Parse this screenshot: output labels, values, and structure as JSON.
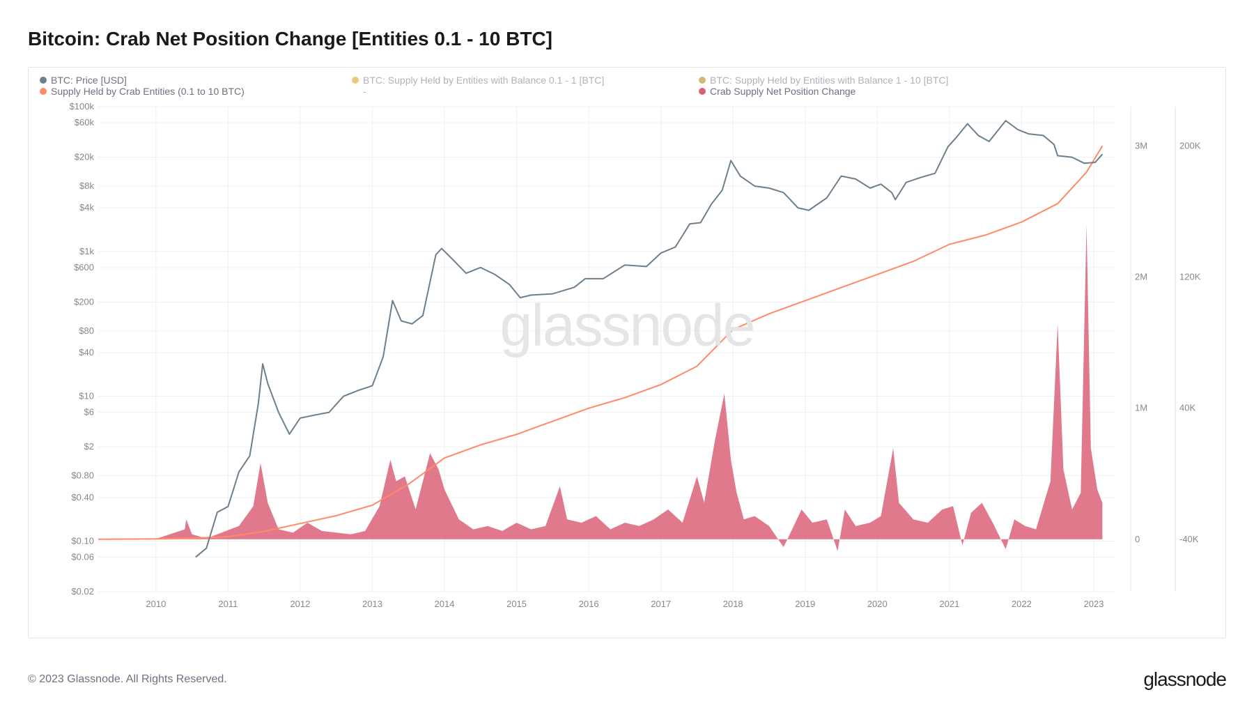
{
  "title": "Bitcoin: Crab Net Position Change [Entities 0.1 - 10 BTC]",
  "watermark": "glassnode",
  "footer_copyright": "© 2023 Glassnode. All Rights Reserved.",
  "footer_brand": "glassnode",
  "legend": [
    {
      "label": "BTC: Price [USD]",
      "color": "#6b7f8c",
      "muted": false
    },
    {
      "label": "BTC: Supply Held by Entities with Balance 0.1 - 1 [BTC]",
      "color": "#d4a017",
      "muted": true
    },
    {
      "label": "BTC: Supply Held by Entities with Balance 1 - 10 [BTC]",
      "color": "#b07d00",
      "muted": true
    },
    {
      "label": "Supply Held by Crab Entities (0.1 to 10 BTC)",
      "color": "#ff8a65",
      "muted": false
    },
    {
      "label": "-",
      "color": "transparent",
      "muted": true
    },
    {
      "label": "Crab Supply Net Position Change",
      "color": "#d96277",
      "muted": false
    }
  ],
  "chart": {
    "type": "combo-line-area",
    "x_years": [
      2010,
      2011,
      2012,
      2013,
      2014,
      2015,
      2016,
      2017,
      2018,
      2019,
      2020,
      2021,
      2022,
      2023
    ],
    "x_range": [
      2009.2,
      2023.3
    ],
    "left_axis": {
      "scale": "log",
      "label_ticks": [
        "$100k",
        "$60k",
        "$20k",
        "$8k",
        "$4k",
        "$1k",
        "$600",
        "$200",
        "$80",
        "$40",
        "$10",
        "$6",
        "$2",
        "$0.80",
        "$0.40",
        "$0.10",
        "$0.06",
        "$0.02"
      ],
      "tick_values": [
        100000,
        60000,
        20000,
        8000,
        4000,
        1000,
        600,
        200,
        80,
        40,
        10,
        6,
        2,
        0.8,
        0.4,
        0.1,
        0.06,
        0.02
      ],
      "min": 0.02,
      "max": 100000,
      "color": "#888888"
    },
    "right_axis_supply": {
      "scale": "linear",
      "ticks": [
        "3M",
        "2M",
        "1M",
        "0"
      ],
      "tick_values": [
        3000000,
        2000000,
        1000000,
        0
      ],
      "min": -400000,
      "max": 3300000,
      "color": "#ff8a65"
    },
    "right_axis_netpos": {
      "scale": "linear",
      "ticks": [
        "200K",
        "120K",
        "40K",
        "-40K"
      ],
      "tick_values": [
        200000,
        120000,
        40000,
        -40000
      ],
      "min": -48000,
      "max": 230000,
      "color": "#d96277"
    },
    "colors": {
      "price_line": "#6b7f8c",
      "supply_line": "#ff8a65",
      "netpos_fill": "#d96277",
      "background": "#ffffff",
      "grid": "#f0f0f0",
      "axis_text": "#888888"
    },
    "line_width_price": 2,
    "line_width_supply": 2,
    "fill_opacity_netpos": 0.85,
    "price_series": [
      [
        2010.55,
        0.06
      ],
      [
        2010.7,
        0.08
      ],
      [
        2010.85,
        0.25
      ],
      [
        2011.0,
        0.3
      ],
      [
        2011.15,
        0.9
      ],
      [
        2011.3,
        1.5
      ],
      [
        2011.42,
        8
      ],
      [
        2011.48,
        28
      ],
      [
        2011.55,
        15
      ],
      [
        2011.7,
        6
      ],
      [
        2011.85,
        3
      ],
      [
        2012.0,
        5
      ],
      [
        2012.2,
        5.5
      ],
      [
        2012.4,
        6
      ],
      [
        2012.6,
        10
      ],
      [
        2012.8,
        12
      ],
      [
        2013.0,
        14
      ],
      [
        2013.15,
        35
      ],
      [
        2013.28,
        210
      ],
      [
        2013.4,
        110
      ],
      [
        2013.55,
        100
      ],
      [
        2013.7,
        130
      ],
      [
        2013.88,
        900
      ],
      [
        2013.96,
        1100
      ],
      [
        2014.1,
        800
      ],
      [
        2014.3,
        500
      ],
      [
        2014.5,
        600
      ],
      [
        2014.7,
        480
      ],
      [
        2014.9,
        350
      ],
      [
        2015.05,
        230
      ],
      [
        2015.2,
        250
      ],
      [
        2015.5,
        260
      ],
      [
        2015.8,
        320
      ],
      [
        2015.95,
        420
      ],
      [
        2016.2,
        420
      ],
      [
        2016.5,
        650
      ],
      [
        2016.8,
        620
      ],
      [
        2017.0,
        950
      ],
      [
        2017.2,
        1150
      ],
      [
        2017.4,
        2400
      ],
      [
        2017.55,
        2500
      ],
      [
        2017.7,
        4500
      ],
      [
        2017.85,
        7000
      ],
      [
        2017.97,
        18000
      ],
      [
        2018.1,
        11000
      ],
      [
        2018.3,
        8000
      ],
      [
        2018.5,
        7500
      ],
      [
        2018.7,
        6500
      ],
      [
        2018.9,
        4000
      ],
      [
        2019.05,
        3700
      ],
      [
        2019.3,
        5500
      ],
      [
        2019.5,
        11000
      ],
      [
        2019.7,
        10000
      ],
      [
        2019.9,
        7500
      ],
      [
        2020.05,
        8500
      ],
      [
        2020.2,
        6500
      ],
      [
        2020.25,
        5200
      ],
      [
        2020.4,
        9000
      ],
      [
        2020.6,
        10500
      ],
      [
        2020.8,
        12000
      ],
      [
        2020.98,
        28000
      ],
      [
        2021.1,
        38000
      ],
      [
        2021.25,
        58000
      ],
      [
        2021.4,
        40000
      ],
      [
        2021.55,
        33000
      ],
      [
        2021.78,
        64000
      ],
      [
        2021.95,
        48000
      ],
      [
        2022.1,
        42000
      ],
      [
        2022.3,
        40000
      ],
      [
        2022.45,
        30000
      ],
      [
        2022.5,
        21000
      ],
      [
        2022.7,
        20000
      ],
      [
        2022.87,
        16500
      ],
      [
        2023.02,
        17000
      ],
      [
        2023.12,
        22000
      ]
    ],
    "supply_series": [
      [
        2009.2,
        0
      ],
      [
        2010.0,
        3000
      ],
      [
        2010.5,
        8000
      ],
      [
        2011.0,
        20000
      ],
      [
        2011.5,
        60000
      ],
      [
        2012.0,
        120000
      ],
      [
        2012.5,
        180000
      ],
      [
        2013.0,
        260000
      ],
      [
        2013.5,
        420000
      ],
      [
        2014.0,
        620000
      ],
      [
        2014.5,
        720000
      ],
      [
        2015.0,
        800000
      ],
      [
        2015.5,
        900000
      ],
      [
        2016.0,
        1000000
      ],
      [
        2016.5,
        1080000
      ],
      [
        2017.0,
        1180000
      ],
      [
        2017.5,
        1320000
      ],
      [
        2018.0,
        1600000
      ],
      [
        2018.5,
        1720000
      ],
      [
        2019.0,
        1820000
      ],
      [
        2019.5,
        1920000
      ],
      [
        2020.0,
        2020000
      ],
      [
        2020.5,
        2120000
      ],
      [
        2021.0,
        2250000
      ],
      [
        2021.5,
        2320000
      ],
      [
        2022.0,
        2420000
      ],
      [
        2022.5,
        2560000
      ],
      [
        2022.9,
        2800000
      ],
      [
        2023.12,
        3000000
      ]
    ],
    "netpos_series": [
      [
        2009.2,
        0
      ],
      [
        2010.0,
        200
      ],
      [
        2010.4,
        6000
      ],
      [
        2010.42,
        12000
      ],
      [
        2010.5,
        3000
      ],
      [
        2010.7,
        500
      ],
      [
        2011.15,
        8000
      ],
      [
        2011.35,
        20000
      ],
      [
        2011.45,
        46000
      ],
      [
        2011.55,
        22000
      ],
      [
        2011.7,
        6000
      ],
      [
        2011.9,
        4000
      ],
      [
        2012.1,
        10000
      ],
      [
        2012.3,
        5000
      ],
      [
        2012.5,
        4000
      ],
      [
        2012.7,
        3000
      ],
      [
        2012.9,
        5000
      ],
      [
        2013.1,
        20000
      ],
      [
        2013.25,
        48000
      ],
      [
        2013.33,
        35000
      ],
      [
        2013.45,
        38000
      ],
      [
        2013.6,
        18000
      ],
      [
        2013.8,
        52000
      ],
      [
        2013.92,
        42000
      ],
      [
        2014.0,
        30000
      ],
      [
        2014.2,
        12000
      ],
      [
        2014.4,
        6000
      ],
      [
        2014.6,
        8000
      ],
      [
        2014.8,
        5000
      ],
      [
        2015.0,
        10000
      ],
      [
        2015.2,
        6000
      ],
      [
        2015.4,
        8000
      ],
      [
        2015.6,
        32000
      ],
      [
        2015.7,
        12000
      ],
      [
        2015.9,
        10000
      ],
      [
        2016.1,
        14000
      ],
      [
        2016.3,
        6000
      ],
      [
        2016.5,
        10000
      ],
      [
        2016.7,
        8000
      ],
      [
        2016.9,
        12000
      ],
      [
        2017.1,
        18000
      ],
      [
        2017.3,
        10000
      ],
      [
        2017.5,
        38000
      ],
      [
        2017.6,
        22000
      ],
      [
        2017.75,
        60000
      ],
      [
        2017.88,
        88000
      ],
      [
        2017.97,
        48000
      ],
      [
        2018.05,
        28000
      ],
      [
        2018.15,
        12000
      ],
      [
        2018.3,
        14000
      ],
      [
        2018.5,
        8000
      ],
      [
        2018.7,
        -8000
      ],
      [
        2018.82,
        6000
      ],
      [
        2018.95,
        18000
      ],
      [
        2019.1,
        10000
      ],
      [
        2019.3,
        12000
      ],
      [
        2019.45,
        -12000
      ],
      [
        2019.55,
        18000
      ],
      [
        2019.7,
        8000
      ],
      [
        2019.9,
        10000
      ],
      [
        2020.05,
        14000
      ],
      [
        2020.22,
        55000
      ],
      [
        2020.3,
        22000
      ],
      [
        2020.5,
        12000
      ],
      [
        2020.7,
        10000
      ],
      [
        2020.9,
        18000
      ],
      [
        2021.05,
        20000
      ],
      [
        2021.18,
        -6000
      ],
      [
        2021.3,
        16000
      ],
      [
        2021.45,
        22000
      ],
      [
        2021.6,
        10000
      ],
      [
        2021.78,
        -10000
      ],
      [
        2021.9,
        12000
      ],
      [
        2022.05,
        8000
      ],
      [
        2022.2,
        6000
      ],
      [
        2022.4,
        35000
      ],
      [
        2022.5,
        130000
      ],
      [
        2022.58,
        42000
      ],
      [
        2022.7,
        18000
      ],
      [
        2022.82,
        28000
      ],
      [
        2022.9,
        190000
      ],
      [
        2022.96,
        55000
      ],
      [
        2023.05,
        30000
      ],
      [
        2023.12,
        22000
      ]
    ]
  }
}
